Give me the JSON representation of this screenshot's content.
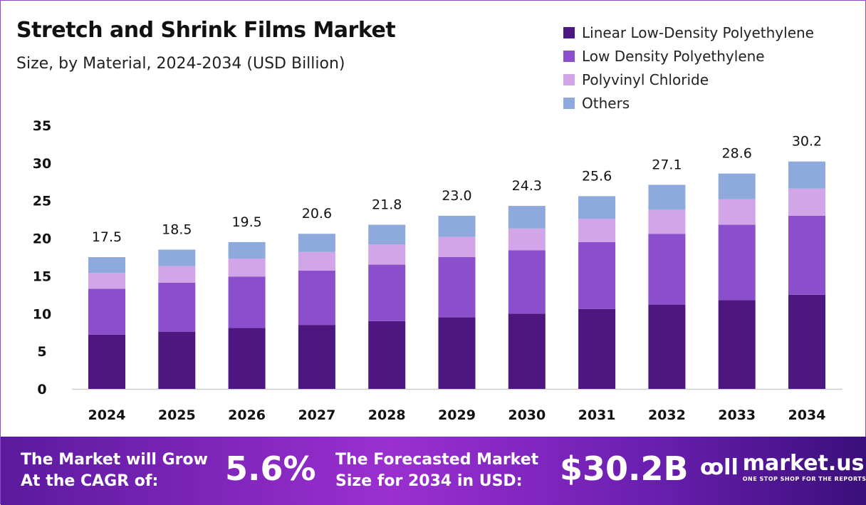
{
  "chart_data": {
    "type": "bar",
    "stacked": true,
    "title": "Stretch and Shrink Films Market",
    "subtitle": "Size, by Material, 2024-2034 (USD Billion)",
    "categories": [
      "2024",
      "2025",
      "2026",
      "2027",
      "2028",
      "2029",
      "2030",
      "2031",
      "2032",
      "2033",
      "2034"
    ],
    "series": [
      {
        "name": "Linear Low-Density Polyethylene",
        "color": "#4e1681",
        "values": [
          7.2,
          7.6,
          8.1,
          8.5,
          9.0,
          9.5,
          10.0,
          10.6,
          11.2,
          11.8,
          12.5
        ]
      },
      {
        "name": "Low Density Polyethylene",
        "color": "#8b4fcc",
        "values": [
          6.1,
          6.5,
          6.8,
          7.2,
          7.5,
          8.0,
          8.4,
          8.9,
          9.4,
          10.0,
          10.5
        ]
      },
      {
        "name": "Polyvinyl Chloride",
        "color": "#d2a4e8",
        "values": [
          2.1,
          2.2,
          2.4,
          2.5,
          2.7,
          2.7,
          2.9,
          3.1,
          3.2,
          3.4,
          3.6
        ]
      },
      {
        "name": "Others",
        "color": "#8eaadc",
        "values": [
          2.1,
          2.2,
          2.2,
          2.4,
          2.6,
          2.8,
          3.0,
          3.0,
          3.3,
          3.4,
          3.6
        ]
      }
    ],
    "totals": [
      "17.5",
      "18.5",
      "19.5",
      "20.6",
      "21.8",
      "23.0",
      "24.3",
      "25.6",
      "27.1",
      "28.6",
      "30.2"
    ],
    "yticks": [
      "0",
      "5",
      "10",
      "15",
      "20",
      "25",
      "30",
      "35"
    ],
    "ylim": [
      0,
      35
    ],
    "grid": false,
    "legend": "top-right"
  },
  "footer": {
    "cagr_label_1": "The Market will Grow",
    "cagr_label_2": "At the CAGR of:",
    "cagr_value": "5.6%",
    "forecast_label_1": "The Forecasted Market",
    "forecast_label_2": "Size for 2034 in USD:",
    "forecast_value": "$30.2B",
    "logo_name": "market.us",
    "logo_tagline": "ONE STOP SHOP FOR THE REPORTS"
  }
}
